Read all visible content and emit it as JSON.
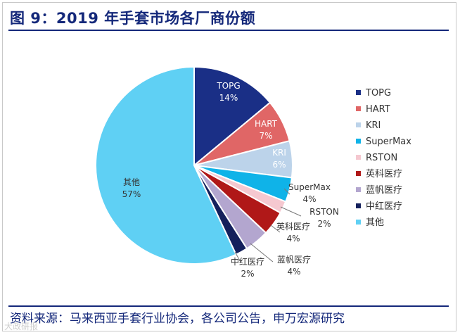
{
  "title": "图 9：2019 年手套市场各厂商份额",
  "source": "资料来源：马来西亚手套行业协会，各公司公告，申万宏源研究",
  "watermark": "大政研报",
  "colors": {
    "title": "#14287a"
  },
  "chart_data": {
    "type": "pie",
    "title": "2019 年手套市场各厂商份额",
    "unit": "%",
    "legend_position": "right",
    "slices": [
      {
        "name": "TOPG",
        "value": 14,
        "label": "14%",
        "color": "#1a2f86"
      },
      {
        "name": "HART",
        "value": 7,
        "label": "7%",
        "color": "#e06666"
      },
      {
        "name": "KRI",
        "value": 6,
        "label": "6%",
        "color": "#bcd3ea"
      },
      {
        "name": "SuperMax",
        "value": 4,
        "label": "4%",
        "color": "#0fb3e8"
      },
      {
        "name": "RSTON",
        "value": 2,
        "label": "2%",
        "color": "#f5c8d0"
      },
      {
        "name": "英科医疗",
        "value": 4,
        "label": "4%",
        "color": "#b01818"
      },
      {
        "name": "蓝帆医疗",
        "value": 4,
        "label": "4%",
        "color": "#b3a6cf"
      },
      {
        "name": "中红医疗",
        "value": 2,
        "label": "2%",
        "color": "#14205c"
      },
      {
        "name": "其他",
        "value": 57,
        "label": "57%",
        "color": "#5fd0f4"
      }
    ]
  }
}
